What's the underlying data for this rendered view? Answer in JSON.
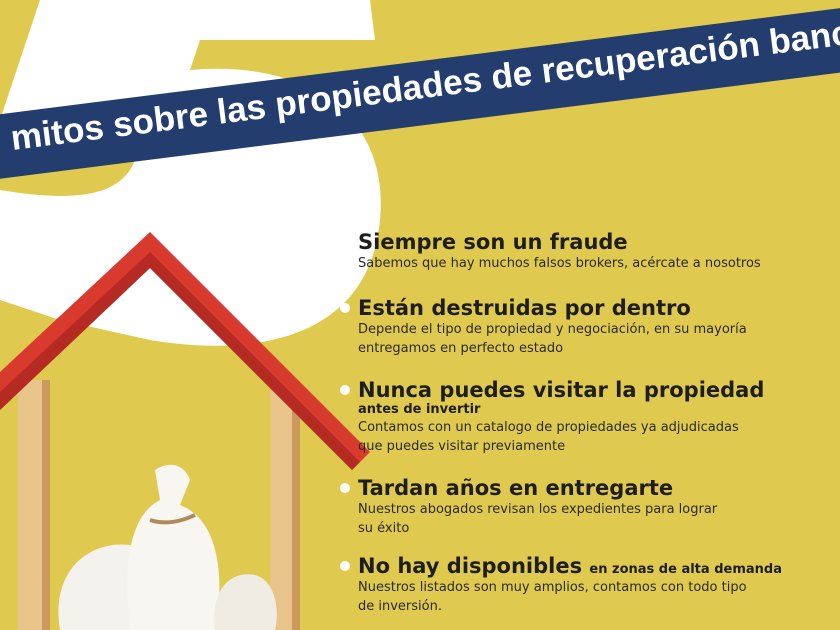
{
  "colors": {
    "background": "#e0c94f",
    "banner": "#233d6e",
    "roof": "#d93a2e",
    "numeral": "#ffffff"
  },
  "title": {
    "numeral": "5",
    "text": "mitos sobre las propiedades de recuperación bancaria"
  },
  "myths": [
    {
      "heading": "Siempre son un fraude",
      "heading_suffix": "",
      "subheading": "",
      "description": [
        "Sabemos que hay muchos falsos brokers, acércate a nosotros"
      ]
    },
    {
      "heading": "Están destruidas por dentro",
      "heading_suffix": "",
      "subheading": "",
      "description": [
        "Depende el tipo de propiedad y negociación, en su mayoría",
        "entregamos en perfecto estado"
      ]
    },
    {
      "heading": "Nunca puedes visitar la propiedad",
      "heading_suffix": "",
      "subheading": "antes de invertir",
      "description": [
        "Contamos con un catalogo de propiedades ya adjudicadas",
        "que puedes visitar previamente"
      ]
    },
    {
      "heading": "Tardan años en entregarte",
      "heading_suffix": "",
      "subheading": "",
      "description": [
        "Nuestros abogados revisan los expedientes para lograr",
        "su éxito"
      ]
    },
    {
      "heading": "No hay disponibles",
      "heading_suffix": "en zonas de alta demanda",
      "subheading": "",
      "description": [
        "Nuestros listados son muy amplios, contamos con todo tipo",
        "de inversión."
      ]
    }
  ]
}
